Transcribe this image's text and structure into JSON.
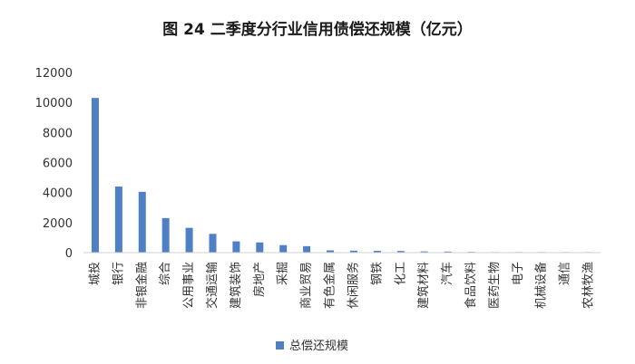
{
  "chart_data": {
    "type": "bar",
    "title": "图 24  二季度分行业信用债偿还规模（亿元）",
    "categories": [
      "城投",
      "银行",
      "非银金融",
      "综合",
      "公用事业",
      "交通运输",
      "建筑装饰",
      "房地产",
      "采掘",
      "商业贸易",
      "有色金属",
      "休闲服务",
      "钢铁",
      "化工",
      "建筑材料",
      "汽车",
      "食品饮料",
      "医药生物",
      "电子",
      "机械设备",
      "通信",
      "农林牧渔"
    ],
    "series": [
      {
        "name": "总偿还规模",
        "color": "#4f7fc4",
        "values": [
          10300,
          4400,
          4050,
          2300,
          1650,
          1250,
          750,
          680,
          500,
          430,
          150,
          130,
          120,
          110,
          80,
          70,
          50,
          30,
          20,
          10,
          5,
          5
        ]
      }
    ],
    "ylim": [
      0,
      12000
    ],
    "yticks": [
      0,
      2000,
      4000,
      6000,
      8000,
      10000,
      12000
    ],
    "grid": false,
    "legend": "bottom"
  }
}
